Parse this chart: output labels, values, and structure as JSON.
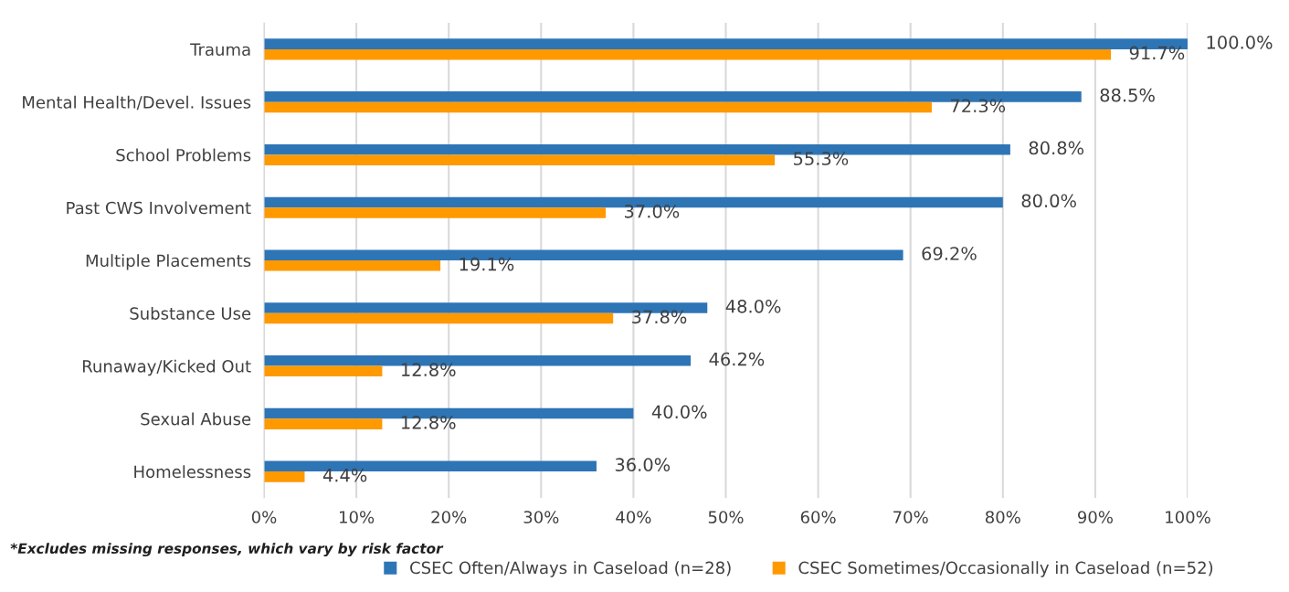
{
  "chart_data": {
    "type": "bar",
    "orientation": "horizontal",
    "categories": [
      "Trauma",
      "Mental Health/Devel. Issues",
      "School Problems",
      "Past CWS Involvement",
      "Multiple Placements",
      "Substance Use",
      "Runaway/Kicked Out",
      "Sexual Abuse",
      "Homelessness"
    ],
    "series": [
      {
        "name": "CSEC Often/Always in Caseload (n=28)",
        "color": "#2e75b6",
        "values": [
          100.0,
          88.5,
          80.8,
          80.0,
          69.2,
          48.0,
          46.2,
          40.0,
          36.0
        ],
        "value_labels": [
          "100.0%",
          "88.5%",
          "80.8%",
          "80.0%",
          "69.2%",
          "48.0%",
          "46.2%",
          "40.0%",
          "36.0%"
        ]
      },
      {
        "name": "CSEC Sometimes/Occasionally in Caseload (n=52)",
        "color": "#ff9900",
        "values": [
          91.7,
          72.3,
          55.3,
          37.0,
          19.1,
          37.8,
          12.8,
          12.8,
          4.4
        ],
        "value_labels": [
          "91.7%",
          "72.3%",
          "55.3%",
          "37.0%",
          "19.1%",
          "37.8%",
          "12.8%",
          "12.8%",
          "4.4%"
        ]
      }
    ],
    "xlim": [
      0,
      100
    ],
    "xticks": [
      {
        "value": 0,
        "label": "0%"
      },
      {
        "value": 10,
        "label": "10%"
      },
      {
        "value": 20,
        "label": "20%"
      },
      {
        "value": 30,
        "label": "30%"
      },
      {
        "value": 40,
        "label": "40%"
      },
      {
        "value": 50,
        "label": "50%"
      },
      {
        "value": 60,
        "label": "60%"
      },
      {
        "value": 70,
        "label": "70%"
      },
      {
        "value": 80,
        "label": "80%"
      },
      {
        "value": 90,
        "label": "90%"
      },
      {
        "value": 100,
        "label": "100%"
      }
    ],
    "grid": "x",
    "legend": "bottom",
    "annotations": [
      "*Excludes missing responses, which vary by risk factor"
    ]
  }
}
